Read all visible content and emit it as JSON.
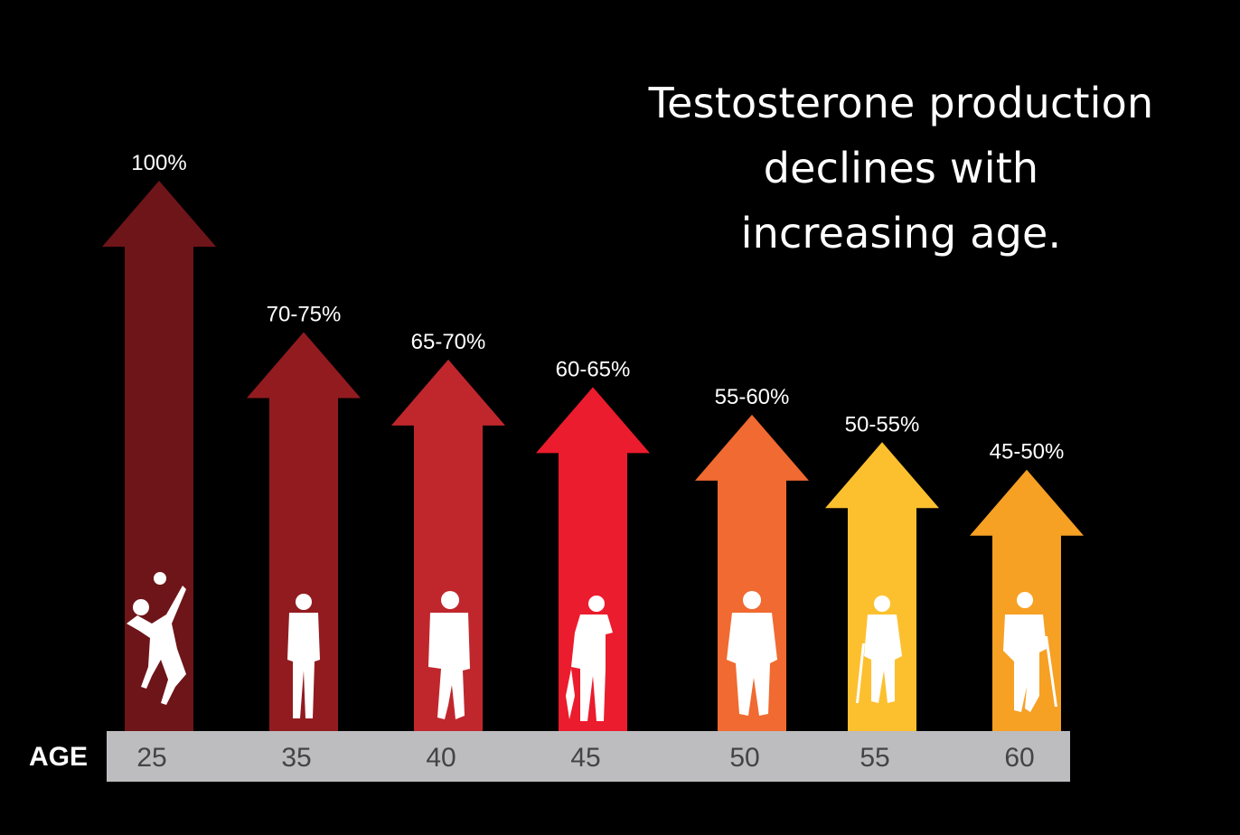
{
  "title_lines": [
    "Testosterone production",
    "declines with",
    "increasing age."
  ],
  "chart_data": {
    "type": "bar",
    "title": "Testosterone production declines with increasing age.",
    "axis_label": "AGE",
    "categories": [
      "25",
      "35",
      "40",
      "45",
      "50",
      "55",
      "60"
    ],
    "labels": [
      "100%",
      "70-75%",
      "65-70%",
      "60-65%",
      "55-60%",
      "50-55%",
      "45-50%"
    ],
    "values": [
      100,
      72.5,
      67.5,
      62.5,
      57.5,
      52.5,
      47.5
    ],
    "colors": [
      "#6e1519",
      "#921b20",
      "#c0272d",
      "#eb1c2d",
      "#f06a31",
      "#fcc02f",
      "#f6a024"
    ],
    "figures": [
      "volleyball-player",
      "standing-man",
      "leaning-man",
      "man-on-phone",
      "heavy-man",
      "old-man-with-cane",
      "elderly-man-with-cane"
    ]
  },
  "colors": {
    "background": "#000000",
    "age_bar": "#bdbdbf",
    "text": "#ffffff",
    "age_text": "#444444"
  }
}
